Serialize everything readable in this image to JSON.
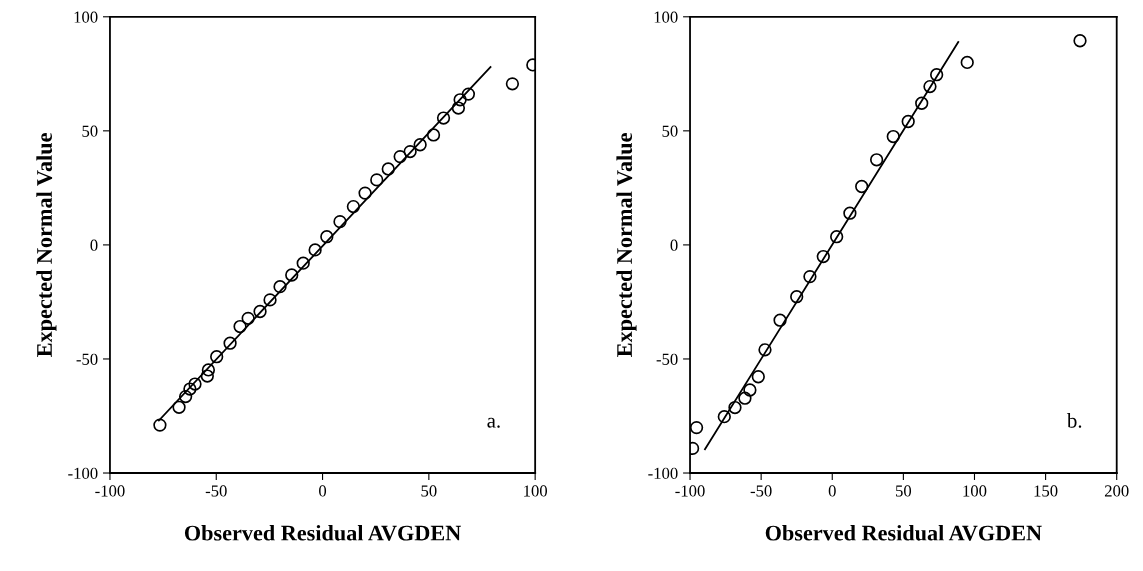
{
  "chart_data": [
    {
      "type": "scatter",
      "xlabel": "Observed Residual AVGDEN",
      "ylabel": "Expected Normal Value",
      "xlim": [
        -100,
        100
      ],
      "ylim": [
        -100,
        100
      ],
      "xticks": [
        -100,
        -50,
        0,
        50,
        100
      ],
      "yticks": [
        -100,
        -50,
        0,
        50,
        100
      ],
      "annotations": [
        "a."
      ],
      "series": [
        {
          "type": "scatter",
          "marker": "circle",
          "color": "#000000",
          "x": [
            -76.5,
            -67.5,
            -64.4,
            -62.4,
            -60,
            -54.2,
            -53.7,
            -49.8,
            -43.5,
            -38.8,
            -35,
            -29.4,
            -24.7,
            -20,
            -14.5,
            -9.1,
            -3.5,
            2,
            8.2,
            14.5,
            20,
            25.5,
            30.9,
            36.5,
            41.2,
            45.9,
            52.2,
            56.9,
            63.9,
            64.7,
            68.6,
            89.3,
            98.9
          ],
          "values": [
            -79,
            -71.2,
            -66.5,
            -63.2,
            -61,
            -57.5,
            -54.8,
            -49,
            -43.1,
            -35.8,
            -32.2,
            -29.2,
            -24.1,
            -18.3,
            -13.2,
            -8,
            -2.2,
            3.6,
            10.2,
            16.8,
            22.7,
            28.5,
            33.3,
            38.7,
            40.9,
            43.9,
            48.2,
            55.6,
            60,
            63.6,
            66.1,
            70.6,
            78.9
          ]
        },
        {
          "type": "line",
          "marker": "none",
          "line_style": "solid",
          "color": "#000000",
          "x": [
            -77,
            79
          ],
          "values": [
            -77,
            78
          ]
        }
      ]
    },
    {
      "type": "scatter",
      "xlabel": "Observed Residual AVGDEN",
      "ylabel": "Expected Normal Value",
      "xlim": [
        -100,
        200
      ],
      "ylim": [
        -100,
        100
      ],
      "xticks": [
        -100,
        -50,
        0,
        50,
        100,
        150,
        200
      ],
      "yticks": [
        -100,
        -50,
        0,
        50,
        100
      ],
      "annotations": [
        "b."
      ],
      "series": [
        {
          "type": "scatter",
          "marker": "circle",
          "color": "#000000",
          "x": [
            -98.2,
            -95.4,
            -75.9,
            -68.4,
            -61.4,
            -57.9,
            -52,
            -47.3,
            -36.7,
            -25,
            -15.7,
            -6.3,
            3.1,
            12.4,
            20.7,
            31.2,
            42.9,
            53.4,
            62.9,
            68.7,
            73.4,
            94.9,
            174.2
          ],
          "values": [
            -89.2,
            -80.1,
            -75.3,
            -71.3,
            -67.2,
            -63.6,
            -57.8,
            -46,
            -33,
            -22.7,
            -13.9,
            -5.1,
            3.6,
            13.9,
            25.6,
            37.3,
            47.5,
            54.1,
            62.1,
            69.4,
            74.6,
            80,
            89.5
          ]
        },
        {
          "type": "line",
          "marker": "none",
          "line_style": "solid",
          "color": "#000000",
          "x": [
            -89.5,
            88.6
          ],
          "values": [
            -89.6,
            88.9
          ]
        }
      ]
    }
  ]
}
